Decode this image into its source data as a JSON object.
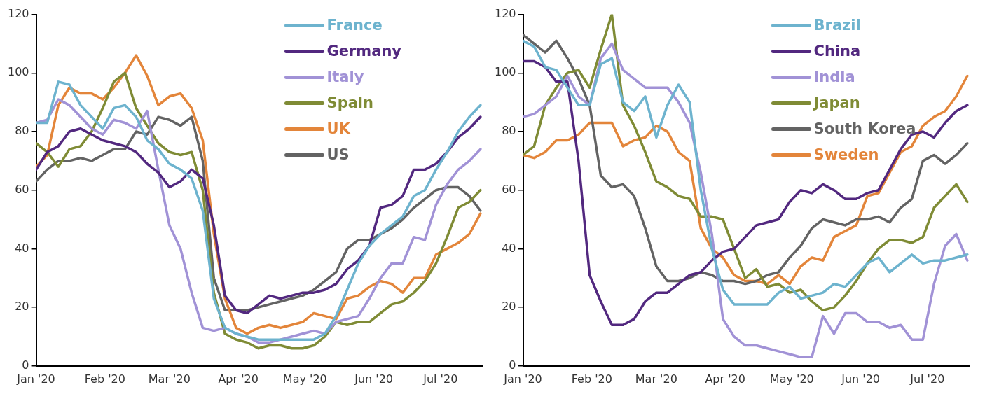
{
  "chart_data": [
    {
      "type": "line",
      "x": [
        "2020-01-01",
        "2020-01-06",
        "2020-01-11",
        "2020-01-16",
        "2020-01-21",
        "2020-01-26",
        "2020-01-31",
        "2020-02-05",
        "2020-02-10",
        "2020-02-15",
        "2020-02-20",
        "2020-02-25",
        "2020-03-01",
        "2020-03-06",
        "2020-03-11",
        "2020-03-16",
        "2020-03-21",
        "2020-03-26",
        "2020-03-31",
        "2020-04-05",
        "2020-04-10",
        "2020-04-15",
        "2020-04-20",
        "2020-04-25",
        "2020-04-30",
        "2020-05-05",
        "2020-05-10",
        "2020-05-15",
        "2020-05-20",
        "2020-05-25",
        "2020-05-30",
        "2020-06-04",
        "2020-06-09",
        "2020-06-14",
        "2020-06-19",
        "2020-06-24",
        "2020-06-29",
        "2020-07-04",
        "2020-07-09",
        "2020-07-14",
        "2020-07-19"
      ],
      "xlim": [
        "2020-01-01",
        "2020-07-20"
      ],
      "xticks": [
        {
          "value": "2020-01-01",
          "label": "Jan '20"
        },
        {
          "value": "2020-02-01",
          "label": "Feb '20"
        },
        {
          "value": "2020-03-01",
          "label": "Mar '20"
        },
        {
          "value": "2020-04-01",
          "label": "Apr '20"
        },
        {
          "value": "2020-05-01",
          "label": "May '20"
        },
        {
          "value": "2020-06-01",
          "label": "Jun '20"
        },
        {
          "value": "2020-07-01",
          "label": "Jul '20"
        }
      ],
      "ylim": [
        0,
        120
      ],
      "yticks": [
        0,
        20,
        40,
        60,
        80,
        100,
        120
      ],
      "legend": "top",
      "series": [
        {
          "name": "France",
          "color": "#6db3ce",
          "values": [
            83,
            83,
            97,
            96,
            89,
            85,
            81,
            88,
            89,
            85,
            77,
            74,
            69,
            67,
            64,
            53,
            23,
            13,
            11,
            10,
            9,
            9,
            9,
            9,
            9,
            9,
            11,
            17,
            26,
            35,
            41,
            45,
            48,
            51,
            58,
            60,
            67,
            73,
            80,
            85,
            89
          ]
        },
        {
          "name": "Germany",
          "color": "#52287f",
          "values": [
            67,
            73,
            75,
            80,
            81,
            79,
            77,
            76,
            75,
            73,
            69,
            66,
            61,
            63,
            67,
            64,
            48,
            24,
            19,
            18,
            21,
            24,
            23,
            24,
            25,
            25,
            26,
            28,
            33,
            36,
            41,
            54,
            55,
            58,
            67,
            67,
            69,
            73,
            78,
            81,
            85
          ]
        },
        {
          "name": "Italy",
          "color": "#a192d6",
          "values": [
            83,
            84,
            91,
            89,
            85,
            81,
            79,
            84,
            83,
            81,
            87,
            67,
            48,
            40,
            25,
            13,
            12,
            13,
            11,
            10,
            8,
            8,
            9,
            10,
            11,
            12,
            11,
            15,
            16,
            17,
            23,
            30,
            35,
            35,
            44,
            43,
            55,
            62,
            67,
            70,
            74
          ]
        },
        {
          "name": "Spain",
          "color": "#7f8b35",
          "values": [
            76,
            73,
            68,
            74,
            75,
            80,
            88,
            97,
            100,
            88,
            82,
            76,
            73,
            72,
            73,
            60,
            25,
            11,
            9,
            8,
            6,
            7,
            7,
            6,
            6,
            7,
            10,
            15,
            14,
            15,
            15,
            18,
            21,
            22,
            25,
            29,
            35,
            44,
            54,
            56,
            60
          ]
        },
        {
          "name": "UK",
          "color": "#e3853a",
          "values": [
            68,
            72,
            89,
            95,
            93,
            93,
            91,
            95,
            100,
            106,
            99,
            89,
            92,
            93,
            88,
            77,
            45,
            23,
            13,
            11,
            13,
            14,
            13,
            14,
            15,
            18,
            17,
            16,
            23,
            24,
            27,
            29,
            28,
            25,
            30,
            30,
            38,
            40,
            42,
            45,
            52
          ]
        },
        {
          "name": "US",
          "color": "#636363",
          "values": [
            63,
            67,
            70,
            70,
            71,
            70,
            72,
            74,
            74,
            80,
            79,
            85,
            84,
            82,
            85,
            70,
            30,
            19,
            19,
            19,
            20,
            21,
            22,
            23,
            24,
            26,
            29,
            32,
            40,
            43,
            43,
            45,
            47,
            50,
            54,
            57,
            60,
            61,
            61,
            58,
            53
          ]
        }
      ]
    },
    {
      "type": "line",
      "x": [
        "2020-01-01",
        "2020-01-06",
        "2020-01-11",
        "2020-01-16",
        "2020-01-21",
        "2020-01-26",
        "2020-01-31",
        "2020-02-05",
        "2020-02-10",
        "2020-02-15",
        "2020-02-20",
        "2020-02-25",
        "2020-03-01",
        "2020-03-06",
        "2020-03-11",
        "2020-03-16",
        "2020-03-21",
        "2020-03-26",
        "2020-03-31",
        "2020-04-05",
        "2020-04-10",
        "2020-04-15",
        "2020-04-20",
        "2020-04-25",
        "2020-04-30",
        "2020-05-05",
        "2020-05-10",
        "2020-05-15",
        "2020-05-20",
        "2020-05-25",
        "2020-05-30",
        "2020-06-04",
        "2020-06-09",
        "2020-06-14",
        "2020-06-19",
        "2020-06-24",
        "2020-06-29",
        "2020-07-04",
        "2020-07-09",
        "2020-07-14",
        "2020-07-19"
      ],
      "xlim": [
        "2020-01-01",
        "2020-07-20"
      ],
      "xticks": [
        {
          "value": "2020-01-01",
          "label": "Jan '20"
        },
        {
          "value": "2020-02-01",
          "label": "Feb '20"
        },
        {
          "value": "2020-03-01",
          "label": "Mar '20"
        },
        {
          "value": "2020-04-01",
          "label": "Apr '20"
        },
        {
          "value": "2020-05-01",
          "label": "May '20"
        },
        {
          "value": "2020-06-01",
          "label": "Jun '20"
        },
        {
          "value": "2020-07-01",
          "label": "Jul '20"
        }
      ],
      "ylim": [
        0,
        120
      ],
      "yticks": [
        0,
        20,
        40,
        60,
        80,
        100,
        120
      ],
      "legend": "top",
      "series": [
        {
          "name": "Brazil",
          "color": "#6db3ce",
          "values": [
            111,
            109,
            102,
            101,
            95,
            89,
            89,
            103,
            105,
            90,
            87,
            92,
            78,
            89,
            96,
            90,
            60,
            40,
            26,
            21,
            21,
            21,
            21,
            25,
            27,
            23,
            24,
            25,
            28,
            27,
            31,
            35,
            37,
            32,
            35,
            38,
            35,
            36,
            36,
            37,
            38
          ]
        },
        {
          "name": "China",
          "color": "#52287f",
          "values": [
            104,
            104,
            102,
            97,
            97,
            70,
            31,
            22,
            14,
            14,
            16,
            22,
            25,
            25,
            28,
            31,
            32,
            36,
            39,
            40,
            44,
            48,
            49,
            50,
            56,
            60,
            59,
            62,
            60,
            57,
            57,
            59,
            60,
            67,
            74,
            79,
            80,
            78,
            83,
            87,
            89
          ]
        },
        {
          "name": "India",
          "color": "#a192d6",
          "values": [
            85,
            86,
            89,
            92,
            99,
            92,
            89,
            105,
            110,
            101,
            98,
            95,
            95,
            95,
            90,
            83,
            66,
            45,
            16,
            10,
            7,
            7,
            6,
            5,
            4,
            3,
            3,
            17,
            11,
            18,
            18,
            15,
            15,
            13,
            14,
            9,
            9,
            28,
            41,
            45,
            36
          ]
        },
        {
          "name": "Japan",
          "color": "#7f8b35",
          "values": [
            72,
            75,
            89,
            95,
            100,
            101,
            95,
            108,
            120,
            89,
            82,
            73,
            63,
            61,
            58,
            57,
            51,
            51,
            50,
            40,
            30,
            33,
            27,
            28,
            25,
            26,
            22,
            19,
            20,
            24,
            29,
            35,
            40,
            43,
            43,
            42,
            44,
            54,
            58,
            62,
            56
          ]
        },
        {
          "name": "South Korea",
          "color": "#636363",
          "values": [
            113,
            110,
            107,
            111,
            105,
            98,
            89,
            65,
            61,
            62,
            58,
            47,
            34,
            29,
            29,
            30,
            32,
            31,
            29,
            29,
            28,
            29,
            31,
            32,
            37,
            41,
            47,
            50,
            49,
            48,
            50,
            50,
            51,
            49,
            54,
            57,
            70,
            72,
            69,
            72,
            76
          ]
        },
        {
          "name": "Sweden",
          "color": "#e3853a",
          "values": [
            72,
            71,
            73,
            77,
            77,
            79,
            83,
            83,
            83,
            75,
            77,
            78,
            82,
            80,
            73,
            70,
            47,
            40,
            37,
            31,
            29,
            29,
            28,
            31,
            28,
            34,
            37,
            36,
            44,
            46,
            48,
            58,
            59,
            66,
            73,
            75,
            82,
            85,
            87,
            92,
            99
          ]
        }
      ]
    }
  ]
}
